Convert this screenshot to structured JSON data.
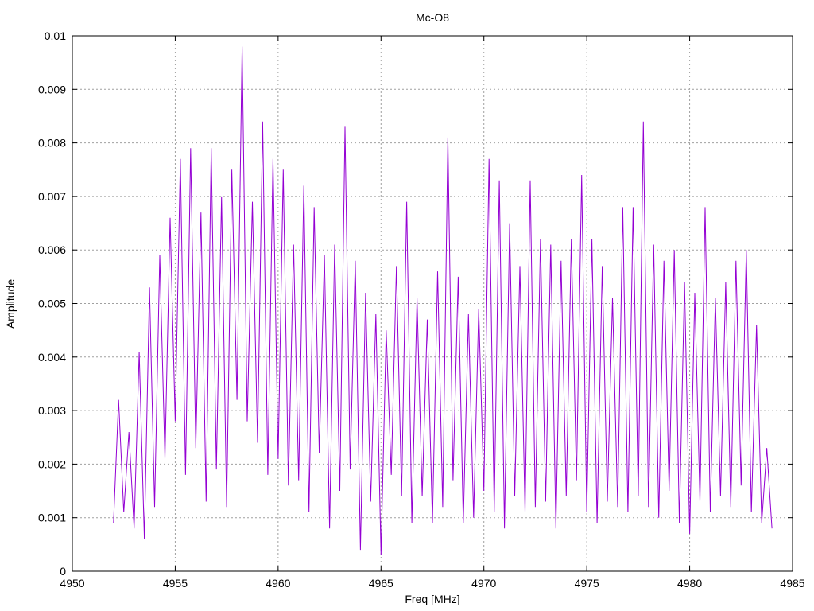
{
  "chart_data": {
    "type": "line",
    "title": "Mc-O8",
    "xlabel": "Freq [MHz]",
    "ylabel": "Amplitude",
    "xlim": [
      4950,
      4985
    ],
    "ylim": [
      0,
      0.01
    ],
    "x_ticks": [
      "4950",
      "4955",
      "4960",
      "4965",
      "4970",
      "4975",
      "4980",
      "4985"
    ],
    "y_ticks": [
      "0",
      "0.001",
      "0.002",
      "0.003",
      "0.004",
      "0.005",
      "0.006",
      "0.007",
      "0.008",
      "0.009",
      "0.01"
    ],
    "grid": true,
    "series": [
      {
        "color": "#9400d3",
        "x": [
          4952.0,
          4952.25,
          4952.5,
          4952.75,
          4953.0,
          4953.25,
          4953.5,
          4953.75,
          4954.0,
          4954.25,
          4954.5,
          4954.75,
          4955.0,
          4955.25,
          4955.5,
          4955.75,
          4956.0,
          4956.25,
          4956.5,
          4956.75,
          4957.0,
          4957.25,
          4957.5,
          4957.75,
          4958.0,
          4958.25,
          4958.5,
          4958.75,
          4959.0,
          4959.25,
          4959.5,
          4959.75,
          4960.0,
          4960.25,
          4960.5,
          4960.75,
          4961.0,
          4961.25,
          4961.5,
          4961.75,
          4962.0,
          4962.25,
          4962.5,
          4962.75,
          4963.0,
          4963.25,
          4963.5,
          4963.75,
          4964.0,
          4964.25,
          4964.5,
          4964.75,
          4965.0,
          4965.25,
          4965.5,
          4965.75,
          4966.0,
          4966.25,
          4966.5,
          4966.75,
          4967.0,
          4967.25,
          4967.5,
          4967.75,
          4968.0,
          4968.25,
          4968.5,
          4968.75,
          4969.0,
          4969.25,
          4969.5,
          4969.75,
          4970.0,
          4970.25,
          4970.5,
          4970.75,
          4971.0,
          4971.25,
          4971.5,
          4971.75,
          4972.0,
          4972.25,
          4972.5,
          4972.75,
          4973.0,
          4973.25,
          4973.5,
          4973.75,
          4974.0,
          4974.25,
          4974.5,
          4974.75,
          4975.0,
          4975.25,
          4975.5,
          4975.75,
          4976.0,
          4976.25,
          4976.5,
          4976.75,
          4977.0,
          4977.25,
          4977.5,
          4977.75,
          4978.0,
          4978.25,
          4978.5,
          4978.75,
          4979.0,
          4979.25,
          4979.5,
          4979.75,
          4980.0,
          4980.25,
          4980.5,
          4980.75,
          4981.0,
          4981.25,
          4981.5,
          4981.75,
          4982.0,
          4982.25,
          4982.5,
          4982.75,
          4983.0,
          4983.25,
          4983.5,
          4983.75,
          4984.0
        ],
        "y": [
          0.0009,
          0.0032,
          0.0011,
          0.0026,
          0.0008,
          0.0041,
          0.0006,
          0.0053,
          0.0012,
          0.0059,
          0.0021,
          0.0066,
          0.0028,
          0.0077,
          0.0018,
          0.0079,
          0.0023,
          0.0067,
          0.0013,
          0.0079,
          0.0019,
          0.007,
          0.0012,
          0.0075,
          0.0032,
          0.0098,
          0.0028,
          0.0069,
          0.0024,
          0.0084,
          0.0018,
          0.0077,
          0.0021,
          0.0075,
          0.0016,
          0.0061,
          0.0017,
          0.0072,
          0.0011,
          0.0068,
          0.0022,
          0.0059,
          0.0008,
          0.0061,
          0.0015,
          0.0083,
          0.0019,
          0.0058,
          0.0004,
          0.0052,
          0.0013,
          0.0048,
          0.0003,
          0.0045,
          0.0018,
          0.0057,
          0.0014,
          0.0069,
          0.0009,
          0.0051,
          0.0014,
          0.0047,
          0.0009,
          0.0056,
          0.0012,
          0.0081,
          0.0017,
          0.0055,
          0.0009,
          0.0048,
          0.001,
          0.0049,
          0.0015,
          0.0077,
          0.0011,
          0.0073,
          0.0008,
          0.0065,
          0.0014,
          0.0057,
          0.0011,
          0.0073,
          0.0012,
          0.0062,
          0.0013,
          0.0061,
          0.0008,
          0.0058,
          0.0014,
          0.0062,
          0.0017,
          0.0074,
          0.0011,
          0.0062,
          0.0009,
          0.0057,
          0.0013,
          0.0051,
          0.0012,
          0.0068,
          0.0011,
          0.0068,
          0.0014,
          0.0084,
          0.0012,
          0.0061,
          0.001,
          0.0058,
          0.0015,
          0.006,
          0.0009,
          0.0054,
          0.0007,
          0.0052,
          0.0013,
          0.0068,
          0.0011,
          0.0051,
          0.0014,
          0.0054,
          0.0012,
          0.0058,
          0.0016,
          0.006,
          0.0011,
          0.0046,
          0.0009,
          0.0023,
          0.0008
        ]
      }
    ]
  }
}
